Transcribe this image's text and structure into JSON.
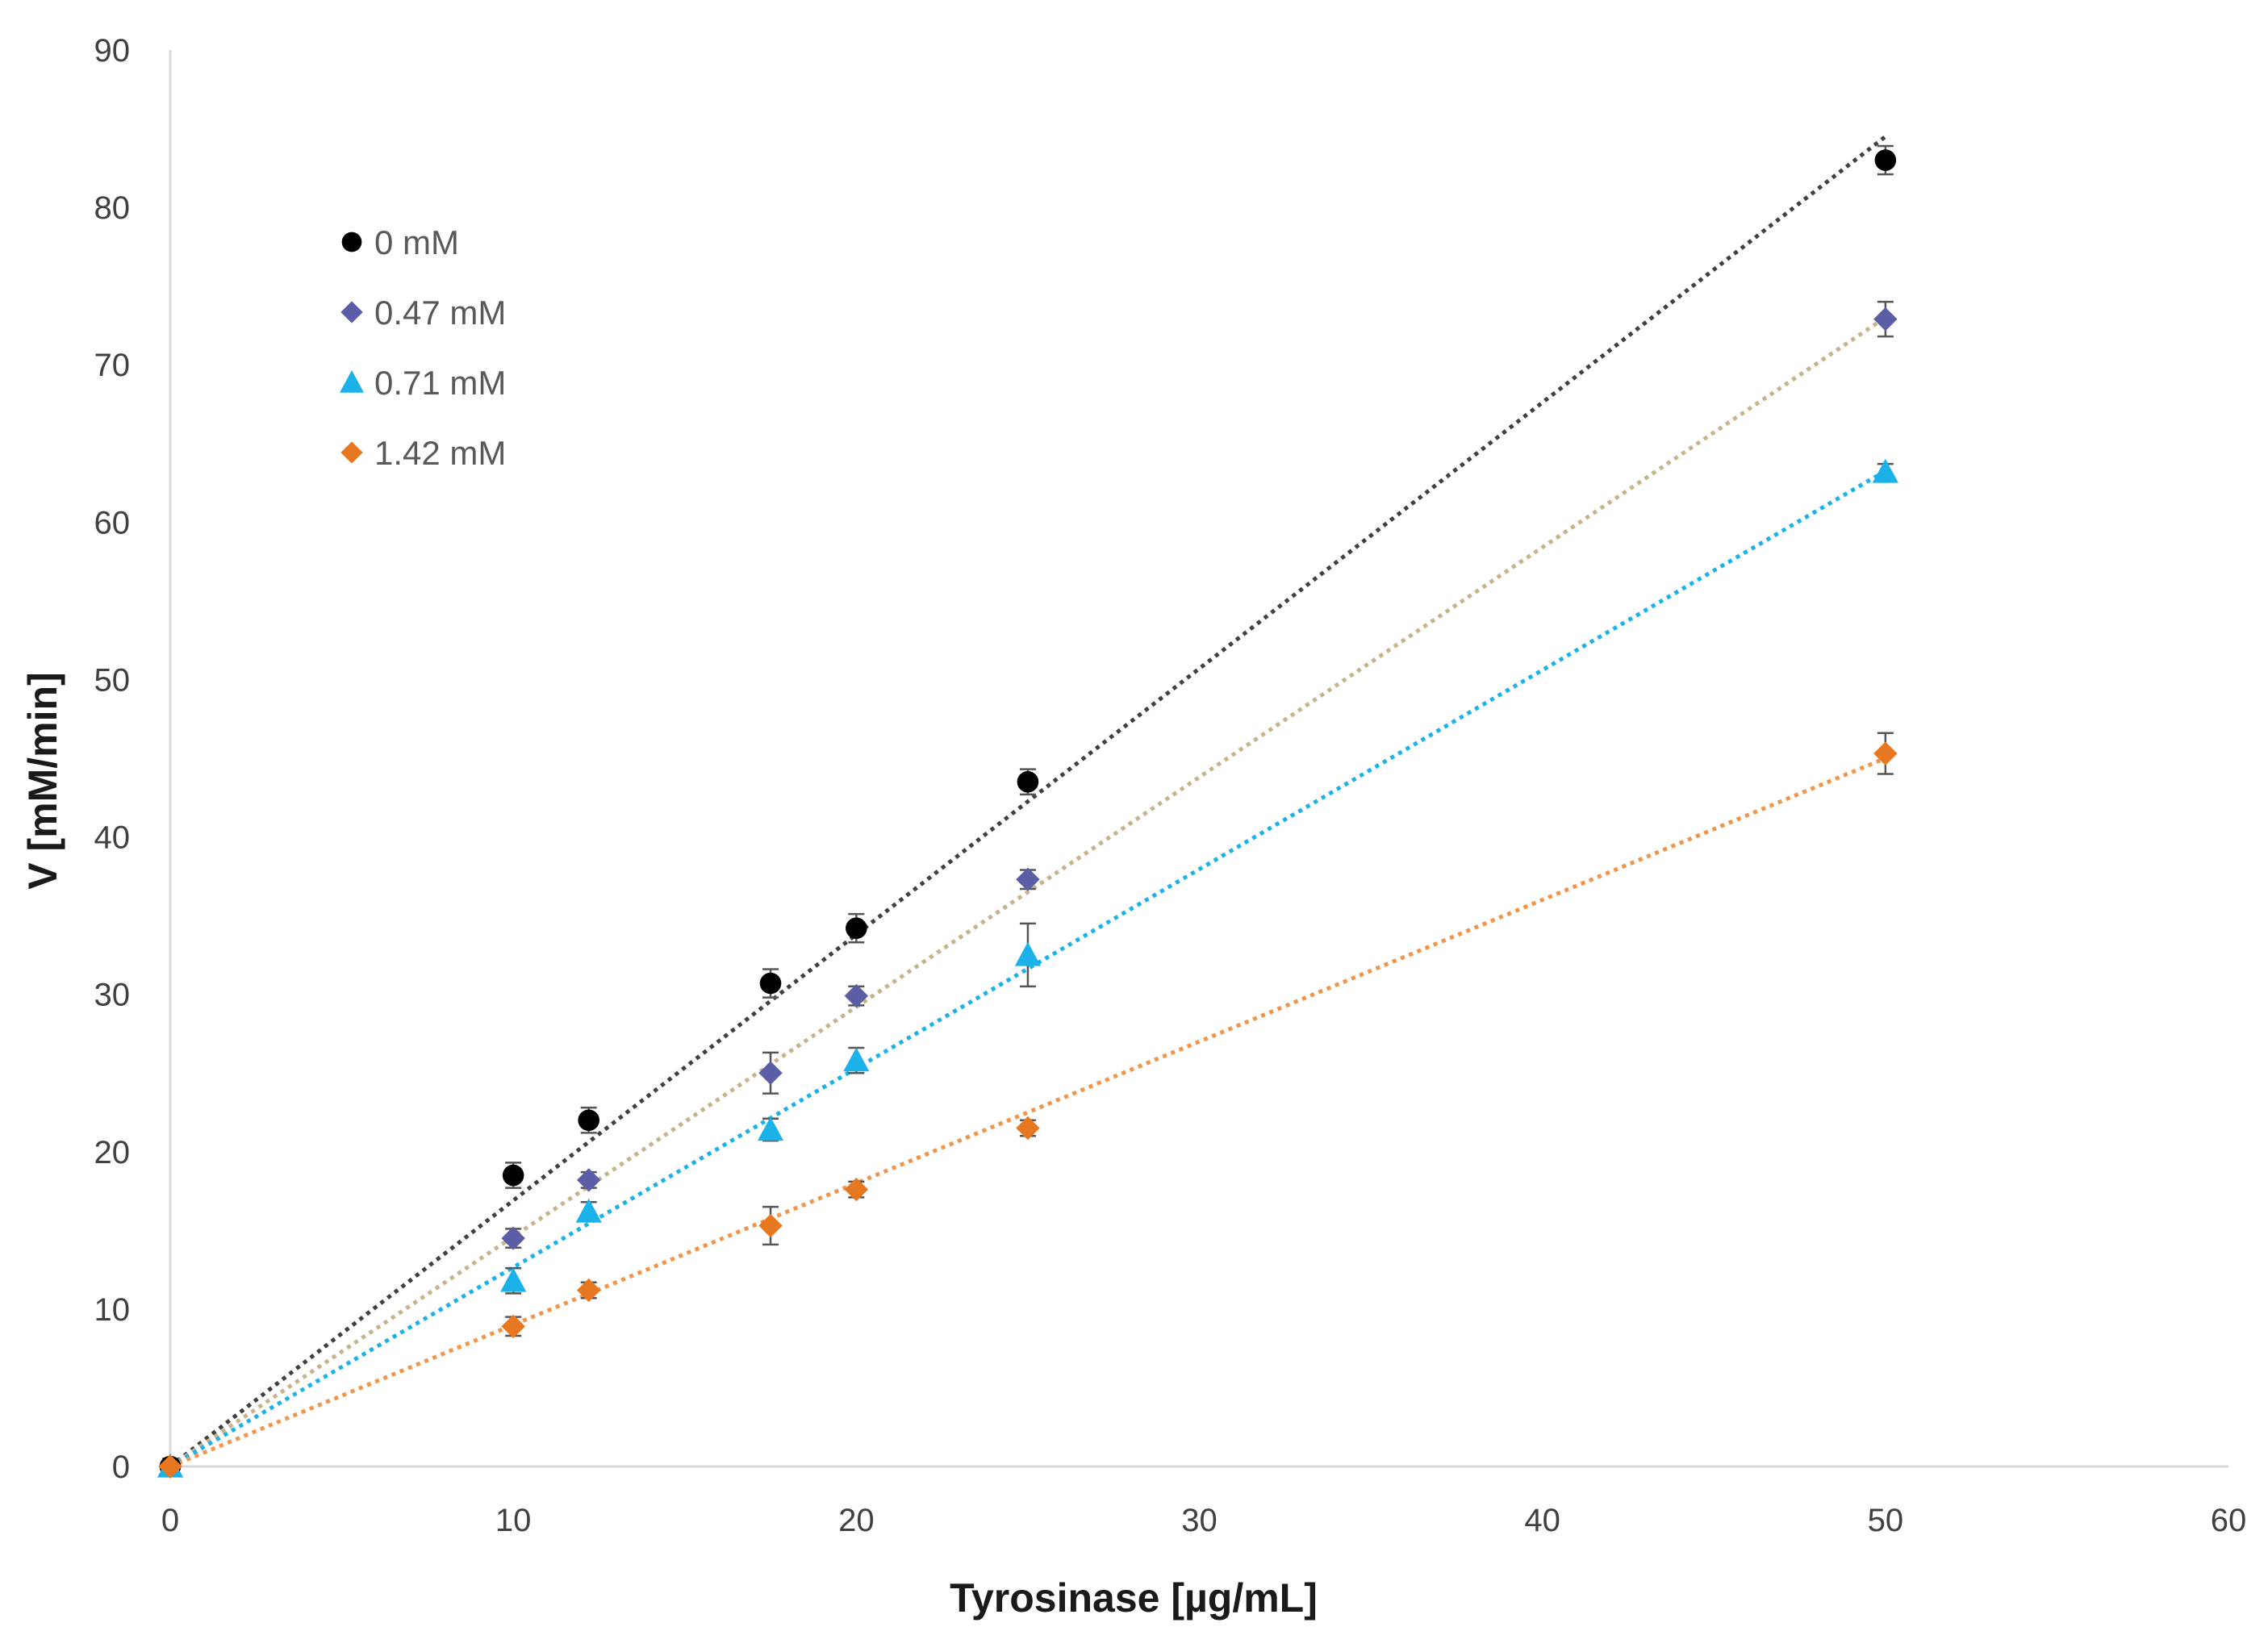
{
  "chart_data": {
    "type": "scatter",
    "title": "",
    "xlabel": "Tyrosinase [µg/mL]",
    "ylabel": "V [mM/min]",
    "xlim": [
      0,
      60
    ],
    "ylim": [
      0,
      90
    ],
    "xticks": [
      0,
      10,
      20,
      30,
      40,
      50,
      60
    ],
    "yticks": [
      0,
      10,
      20,
      30,
      40,
      50,
      60,
      70,
      80,
      90
    ],
    "grid": false,
    "legend_position": "top-left",
    "series": [
      {
        "name": "0 mM",
        "marker": "circle",
        "color": "#000000",
        "trendline_color": "#404040",
        "trend_slope": 1.69,
        "x": [
          0,
          10,
          12.2,
          17.5,
          20,
          25,
          50
        ],
        "y": [
          0,
          18.5,
          22,
          30.7,
          34.2,
          43.5,
          83
        ],
        "err": [
          0.5,
          0.8,
          0.8,
          0.9,
          0.9,
          0.8,
          0.9
        ]
      },
      {
        "name": "0.47 mM",
        "marker": "diamond",
        "color": "#5b5ea6",
        "trendline_color": "#c8b48c",
        "trend_slope": 1.46,
        "x": [
          0,
          10,
          12.2,
          17.5,
          20,
          25,
          50
        ],
        "y": [
          0,
          14.5,
          18.2,
          25,
          29.9,
          37.3,
          72.9
        ],
        "err": [
          0.5,
          0.6,
          0.5,
          1.3,
          0.6,
          0.6,
          1.1
        ]
      },
      {
        "name": "0.71 mM",
        "marker": "triangle",
        "color": "#1ab2e8",
        "trendline_color": "#1ab2e8",
        "trend_slope": 1.265,
        "x": [
          0,
          10,
          12.2,
          17.5,
          20,
          25,
          50
        ],
        "y": [
          0,
          11.8,
          16.2,
          21.4,
          25.8,
          32.5,
          63.2
        ],
        "err": [
          0.5,
          0.8,
          0.6,
          0.7,
          0.8,
          2.0,
          0.5
        ]
      },
      {
        "name": "1.42 mM",
        "marker": "diamond",
        "color": "#e87722",
        "trendline_color": "#f0954a",
        "trend_slope": 0.9,
        "x": [
          0,
          10,
          12.2,
          17.5,
          20,
          25,
          50
        ],
        "y": [
          0,
          8.9,
          11.2,
          15.3,
          17.6,
          21.5,
          45.3
        ],
        "err": [
          0.5,
          0.6,
          0.5,
          1.2,
          0.5,
          0.5,
          1.3
        ]
      }
    ]
  }
}
